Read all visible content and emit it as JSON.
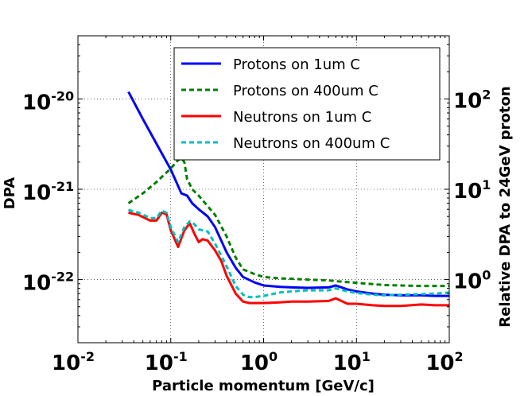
{
  "chart_data": {
    "type": "line",
    "xlabel": "Particle momentum [GeV/c]",
    "ylabel": "DPA",
    "y2label": "Relative DPA to 24GeV proton",
    "xscale": "log",
    "yscale": "log",
    "xlim": [
      0.01,
      100
    ],
    "ylim": [
      2e-23,
      5e-20
    ],
    "y2lim": [
      0.2,
      500
    ],
    "grid": true,
    "legend_position": "top-right",
    "x_ticks": [
      {
        "base": "10",
        "exp": "-2",
        "value": 0.01
      },
      {
        "base": "10",
        "exp": "-1",
        "value": 0.1
      },
      {
        "base": "10",
        "exp": "0",
        "value": 1
      },
      {
        "base": "10",
        "exp": "1",
        "value": 10
      },
      {
        "base": "10",
        "exp": "2",
        "value": 100
      }
    ],
    "y_ticks": [
      {
        "base": "10",
        "exp": "-22",
        "value": 1e-22
      },
      {
        "base": "10",
        "exp": "-21",
        "value": 1e-21
      },
      {
        "base": "10",
        "exp": "-20",
        "value": 1e-20
      }
    ],
    "y2_ticks": [
      {
        "label": "10",
        "exp": "0",
        "value": 1
      },
      {
        "label": "10",
        "exp": "1",
        "value": 10
      },
      {
        "label": "10",
        "exp": "2",
        "value": 100
      }
    ],
    "series": [
      {
        "name": "Protons on 1um C",
        "color": "#0000ff",
        "dash": "solid",
        "x": [
          0.035,
          0.05,
          0.07,
          0.1,
          0.13,
          0.15,
          0.17,
          0.2,
          0.25,
          0.3,
          0.4,
          0.5,
          0.6,
          0.8,
          1.0,
          1.5,
          2,
          3,
          5,
          6,
          8,
          10,
          15,
          20,
          30,
          50,
          70,
          100
        ],
        "y": [
          1.2e-20,
          6e-21,
          3.2e-21,
          1.65e-21,
          9e-22,
          8.5e-22,
          7e-22,
          6e-22,
          5e-22,
          3.8e-22,
          2e-22,
          1.35e-22,
          1.07e-22,
          9.3e-23,
          8.6e-23,
          8.3e-23,
          8.2e-23,
          8.1e-23,
          8.2e-23,
          8.6e-23,
          7.8e-23,
          7.4e-23,
          7e-23,
          6.8e-23,
          6.7e-23,
          6.7e-23,
          6.6e-23,
          6.6e-23
        ]
      },
      {
        "name": "Protons on 400um C",
        "color": "#007f00",
        "dash": "dashed",
        "x": [
          0.035,
          0.05,
          0.07,
          0.1,
          0.12,
          0.13,
          0.14,
          0.15,
          0.17,
          0.2,
          0.25,
          0.3,
          0.4,
          0.5,
          0.6,
          0.8,
          1.0,
          1.5,
          2,
          3,
          5,
          6,
          8,
          10,
          15,
          20,
          30,
          50,
          70,
          100
        ],
        "y": [
          7e-22,
          9e-22,
          1.2e-21,
          1.7e-21,
          2.1e-21,
          2.2e-21,
          2e-21,
          1.3e-21,
          1e-21,
          8.5e-22,
          6.5e-22,
          5.2e-22,
          3e-22,
          1.75e-22,
          1.3e-22,
          1.15e-22,
          1.07e-22,
          1.03e-22,
          1.02e-22,
          1e-22,
          9.8e-23,
          9.6e-23,
          9.4e-23,
          9.2e-23,
          8.9e-23,
          8.7e-23,
          8.6e-23,
          8.5e-23,
          8.5e-23,
          8.5e-23
        ]
      },
      {
        "name": "Neutrons on 1um C",
        "color": "#ff0000",
        "dash": "solid",
        "x": [
          0.035,
          0.045,
          0.06,
          0.07,
          0.08,
          0.09,
          0.1,
          0.12,
          0.14,
          0.16,
          0.18,
          0.2,
          0.22,
          0.25,
          0.3,
          0.35,
          0.4,
          0.5,
          0.6,
          0.7,
          0.8,
          1.0,
          1.5,
          2,
          3,
          5,
          6,
          8,
          10,
          15,
          20,
          30,
          50,
          70,
          100
        ],
        "y": [
          5.5e-22,
          5.2e-22,
          4.5e-22,
          4.5e-22,
          5.5e-22,
          5.3e-22,
          3.5e-22,
          2.3e-22,
          3.5e-22,
          4.2e-22,
          3.2e-22,
          2.6e-22,
          2.8e-22,
          2.7e-22,
          2.1e-22,
          1.6e-22,
          1.1e-22,
          7e-23,
          5.7e-23,
          5.5e-23,
          5.5e-23,
          5.5e-23,
          5.6e-23,
          5.7e-23,
          5.7e-23,
          5.8e-23,
          6.2e-23,
          5.4e-23,
          5.4e-23,
          5.2e-23,
          5.1e-23,
          5.1e-23,
          5.3e-23,
          5.2e-23,
          5.2e-23
        ]
      },
      {
        "name": "Neutrons on 400um C",
        "color": "#00bfbf",
        "dash": "dashed",
        "x": [
          0.035,
          0.045,
          0.06,
          0.07,
          0.08,
          0.09,
          0.1,
          0.12,
          0.14,
          0.16,
          0.18,
          0.2,
          0.25,
          0.3,
          0.4,
          0.5,
          0.6,
          0.7,
          0.8,
          1.0,
          1.5,
          2,
          3,
          5,
          6,
          8,
          10,
          15,
          20,
          30,
          50,
          70,
          100
        ],
        "y": [
          5.9e-22,
          5.5e-22,
          4.8e-22,
          4.8e-22,
          5.8e-22,
          5.5e-22,
          3.8e-22,
          2.6e-22,
          3.8e-22,
          4.4e-22,
          4.1e-22,
          3.6e-22,
          3.4e-22,
          2.5e-22,
          1.4e-22,
          8.5e-23,
          6.8e-23,
          6.4e-23,
          6.4e-23,
          6.6e-23,
          7.2e-23,
          7.4e-23,
          7.6e-23,
          7.6e-23,
          8e-23,
          7.4e-23,
          7.1e-23,
          6.8e-23,
          6.7e-23,
          6.8e-23,
          6.9e-23,
          7e-23,
          7.2e-23
        ]
      }
    ]
  }
}
